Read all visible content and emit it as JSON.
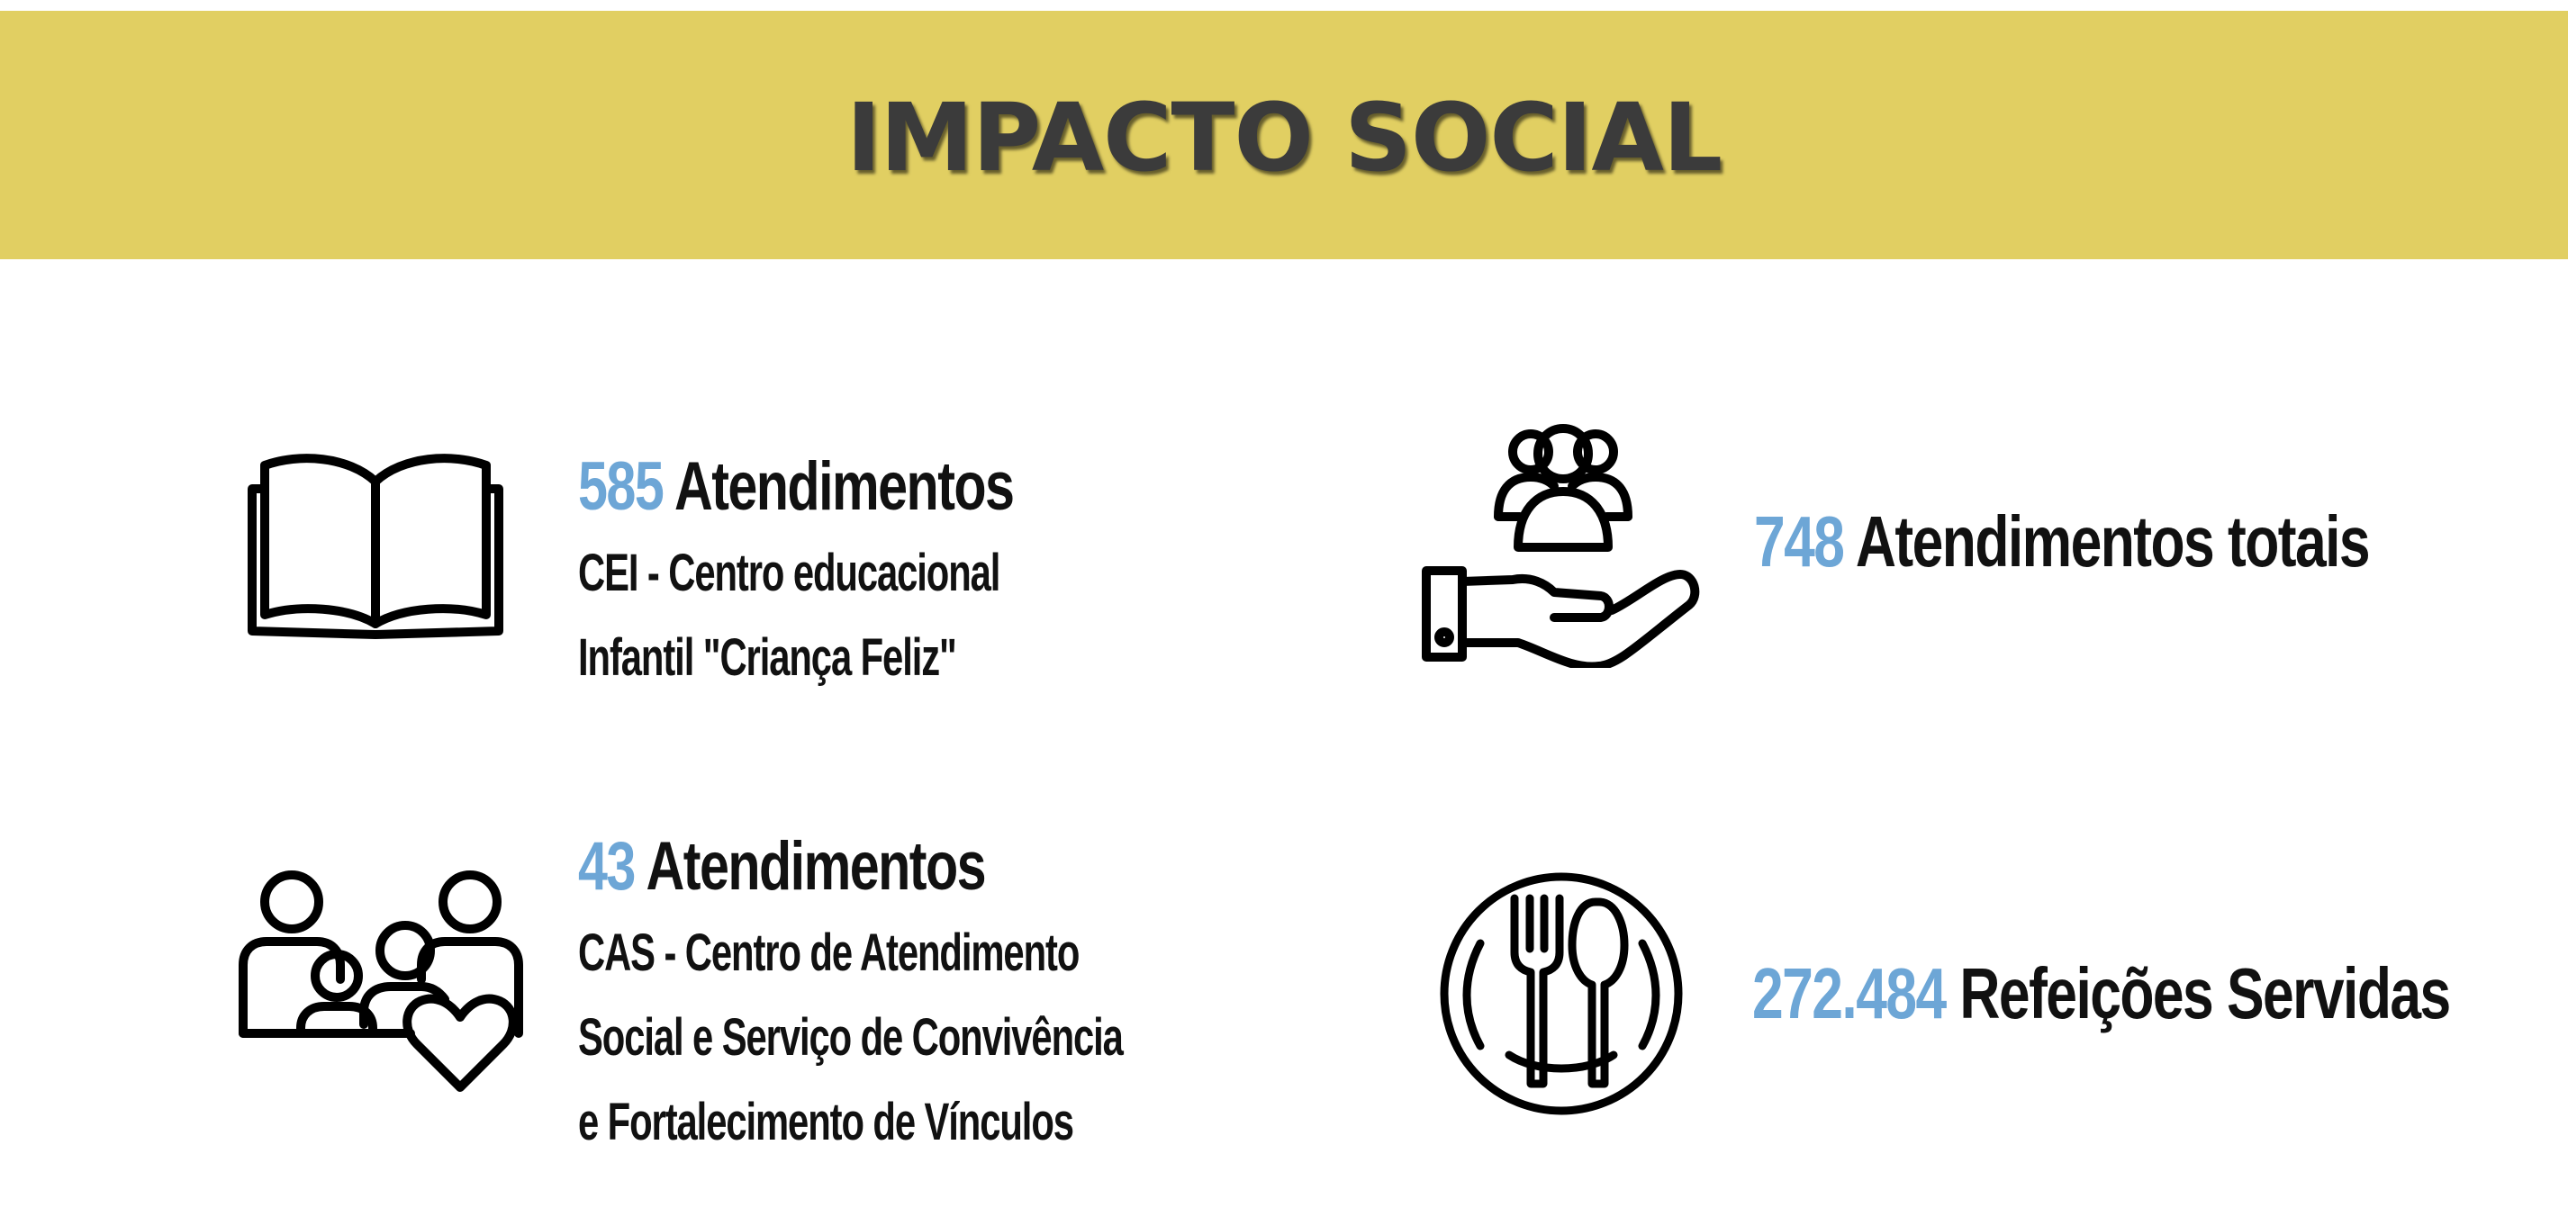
{
  "header": {
    "title": "IMPACTO SOCIAL"
  },
  "colors": {
    "banner": "#e1cf62",
    "number_accent": "#6da6d6",
    "text": "#111111"
  },
  "items": [
    {
      "icon": "open-book-icon",
      "number": "585",
      "label": "Atendimentos",
      "description": [
        "CEI - Centro educacional",
        "Infantil \"Criança Feliz\""
      ]
    },
    {
      "icon": "hand-holding-people-icon",
      "number": "748",
      "label": "Atendimentos totais"
    },
    {
      "icon": "family-heart-icon",
      "number": "43",
      "label": "Atendimentos",
      "description": [
        "CAS - Centro de Atendimento",
        "Social e Serviço de Convivência",
        "e Fortalecimento de Vínculos"
      ]
    },
    {
      "icon": "plate-cutlery-icon",
      "number": "272.484",
      "label": "Refeições Servidas"
    }
  ]
}
